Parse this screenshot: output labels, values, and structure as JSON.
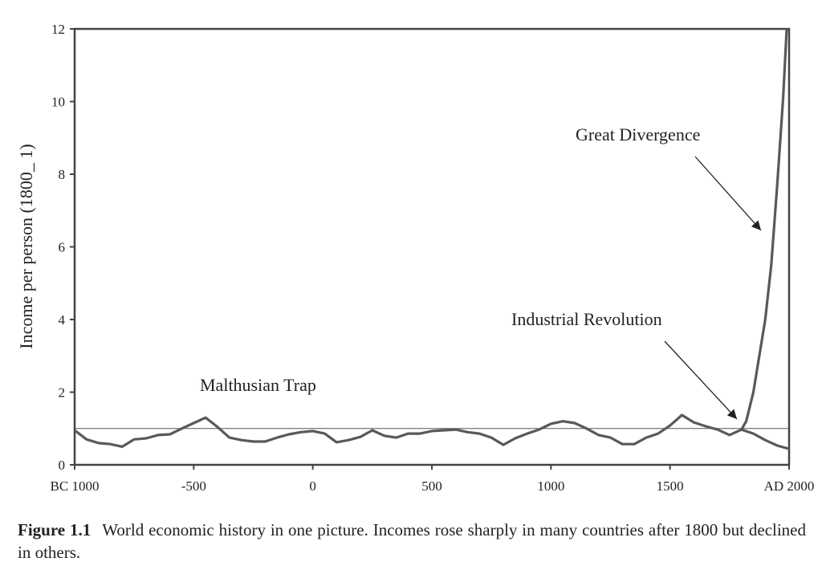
{
  "chart_data": {
    "type": "line",
    "y_label": "Income per person (1800_ 1)",
    "xlim": [
      -1000,
      2000
    ],
    "ylim": [
      0,
      12
    ],
    "xticks": [
      {
        "value": -1000,
        "label": "BC 1000"
      },
      -500,
      0,
      500,
      1000,
      1500,
      {
        "value": 2000,
        "label": "AD 2000"
      }
    ],
    "yticks": [
      0,
      2,
      4,
      6,
      8,
      10,
      12
    ],
    "reference_line": 1,
    "series": [
      {
        "color": "#595959",
        "x": [
          -1000,
          -950,
          -900,
          -850,
          -800,
          -750,
          -700,
          -650,
          -600,
          -550,
          -500,
          -450,
          -400,
          -350,
          -300,
          -250,
          -200,
          -150,
          -100,
          -50,
          0,
          50,
          100,
          150,
          200,
          250,
          300,
          350,
          400,
          450,
          500,
          550,
          600,
          650,
          700,
          750,
          800,
          850,
          900,
          950,
          1000,
          1050,
          1100,
          1150,
          1200,
          1250,
          1300,
          1350,
          1400,
          1450,
          1500,
          1550,
          1600,
          1650,
          1700,
          1750,
          1800,
          1820,
          1850,
          1900,
          1925,
          1950,
          1975,
          1990
        ],
        "values": [
          0.95,
          0.7,
          0.6,
          0.57,
          0.5,
          0.7,
          0.73,
          0.82,
          0.84,
          1.0,
          1.15,
          1.3,
          1.04,
          0.75,
          0.68,
          0.64,
          0.64,
          0.75,
          0.84,
          0.9,
          0.93,
          0.86,
          0.62,
          0.68,
          0.77,
          0.95,
          0.8,
          0.75,
          0.86,
          0.86,
          0.93,
          0.95,
          0.97,
          0.9,
          0.86,
          0.75,
          0.55,
          0.73,
          0.86,
          0.97,
          1.13,
          1.2,
          1.15,
          1.0,
          0.82,
          0.75,
          0.57,
          0.57,
          0.75,
          0.86,
          1.08,
          1.37,
          1.17,
          1.06,
          0.97,
          0.82,
          0.97,
          1.2,
          2.0,
          4.0,
          5.5,
          7.7,
          10.1,
          12
        ]
      },
      {
        "color": "#595959",
        "x": [
          1800,
          1850,
          1900,
          1950,
          2000
        ],
        "values": [
          0.97,
          0.86,
          0.68,
          0.53,
          0.44
        ]
      }
    ],
    "annotations": [
      "Malthusian Trap",
      "Industrial Revolution",
      "Great Divergence"
    ]
  },
  "caption": {
    "label": "Figure 1.1",
    "text": "World economic history in one picture. Incomes rose sharply in many countries after 1800 but declined in others."
  }
}
